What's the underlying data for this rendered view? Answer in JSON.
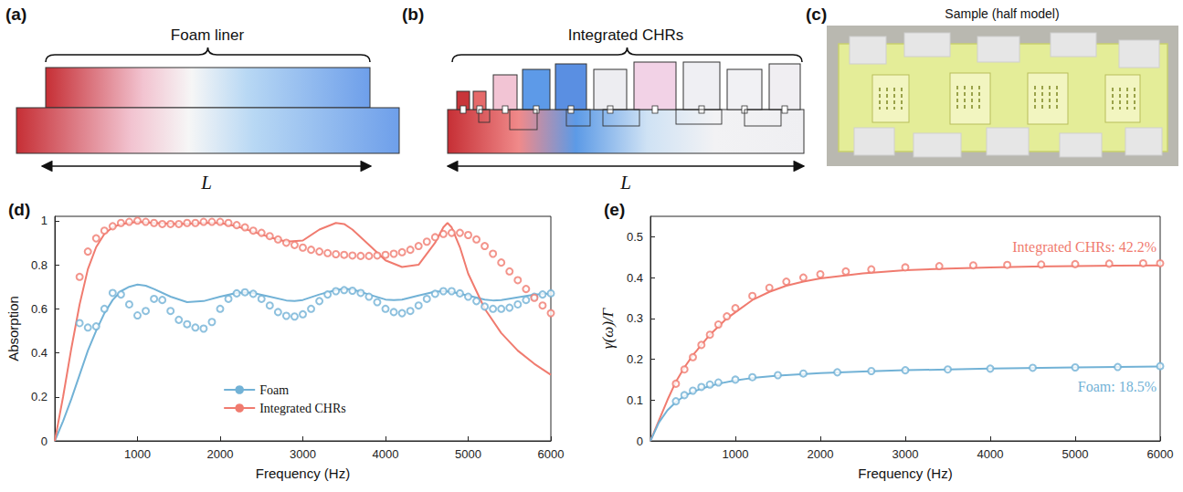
{
  "panels": {
    "a": {
      "label": "(a)",
      "title": "Foam liner",
      "dimension": "L"
    },
    "b": {
      "label": "(b)",
      "title": "Integrated CHRs",
      "dimension": "L"
    },
    "c": {
      "label": "(c)",
      "caption": "Sample (half model)"
    }
  },
  "chart_data": [
    {
      "type": "line",
      "title": "(d)",
      "x_label": "Frequency (Hz)",
      "y_label": "Absorption",
      "xlim": [
        0,
        6000
      ],
      "xticks": [
        1000,
        2000,
        3000,
        4000,
        5000,
        6000
      ],
      "ylim": [
        0,
        1.02
      ],
      "yticks": [
        0,
        0.2,
        0.4,
        0.6,
        0.8,
        1
      ],
      "grid": false,
      "legend": "bottom",
      "series": [
        {
          "name": "Foam",
          "type": "line",
          "line_style": "solid",
          "color": "#72b2d6",
          "x": [
            0,
            100,
            200,
            300,
            400,
            500,
            600,
            700,
            800,
            900,
            1000,
            1100,
            1200,
            1400,
            1600,
            1800,
            2000,
            2200,
            2300,
            2400,
            2600,
            2800,
            2900,
            3000,
            3200,
            3400,
            3500,
            3600,
            3800,
            4000,
            4100,
            4200,
            4400,
            4600,
            4700,
            4800,
            5000,
            5200,
            5300,
            5400,
            5600,
            5800,
            6000
          ],
          "values": [
            0,
            0.09,
            0.19,
            0.3,
            0.41,
            0.5,
            0.58,
            0.64,
            0.68,
            0.7,
            0.71,
            0.705,
            0.69,
            0.655,
            0.63,
            0.635,
            0.655,
            0.672,
            0.675,
            0.672,
            0.655,
            0.638,
            0.635,
            0.64,
            0.665,
            0.685,
            0.69,
            0.688,
            0.665,
            0.642,
            0.64,
            0.642,
            0.66,
            0.678,
            0.68,
            0.677,
            0.66,
            0.642,
            0.638,
            0.64,
            0.652,
            0.664,
            0.67
          ]
        },
        {
          "name": "Integrated CHRs",
          "type": "line",
          "line_style": "solid",
          "color": "#f07b6f",
          "x": [
            0,
            100,
            200,
            300,
            400,
            500,
            600,
            700,
            800,
            1000,
            1200,
            1500,
            1800,
            2000,
            2200,
            2400,
            2600,
            2800,
            3000,
            3200,
            3400,
            3500,
            3600,
            3800,
            4000,
            4200,
            4400,
            4600,
            4700,
            4750,
            4800,
            4900,
            5000,
            5200,
            5400,
            5600,
            5800,
            6000
          ],
          "values": [
            0,
            0.2,
            0.42,
            0.62,
            0.78,
            0.88,
            0.94,
            0.97,
            0.985,
            0.995,
            0.99,
            0.985,
            0.99,
            0.99,
            0.975,
            0.95,
            0.925,
            0.905,
            0.91,
            0.96,
            0.99,
            0.985,
            0.96,
            0.89,
            0.82,
            0.79,
            0.8,
            0.9,
            0.97,
            0.99,
            0.97,
            0.88,
            0.76,
            0.6,
            0.49,
            0.41,
            0.35,
            0.3
          ]
        },
        {
          "name": "Foam",
          "type": "scatter",
          "marker": "open_circle",
          "color": "#72b2d6",
          "x": [
            300,
            400,
            500,
            600,
            700,
            800,
            900,
            1000,
            1100,
            1200,
            1300,
            1400,
            1500,
            1600,
            1700,
            1800,
            1900,
            2000,
            2100,
            2200,
            2300,
            2400,
            2500,
            2600,
            2700,
            2800,
            2900,
            3000,
            3100,
            3200,
            3300,
            3400,
            3500,
            3600,
            3700,
            3800,
            3900,
            4000,
            4100,
            4200,
            4300,
            4400,
            4500,
            4600,
            4700,
            4800,
            4900,
            5000,
            5100,
            5200,
            5300,
            5400,
            5500,
            5600,
            5700,
            5800,
            5900,
            6000
          ],
          "values": [
            0.535,
            0.515,
            0.52,
            0.6,
            0.672,
            0.665,
            0.62,
            0.57,
            0.59,
            0.645,
            0.64,
            0.59,
            0.55,
            0.53,
            0.515,
            0.51,
            0.54,
            0.6,
            0.645,
            0.67,
            0.675,
            0.668,
            0.645,
            0.615,
            0.585,
            0.568,
            0.565,
            0.575,
            0.6,
            0.635,
            0.665,
            0.68,
            0.685,
            0.682,
            0.672,
            0.655,
            0.63,
            0.6,
            0.585,
            0.58,
            0.59,
            0.615,
            0.645,
            0.668,
            0.68,
            0.68,
            0.67,
            0.655,
            0.635,
            0.61,
            0.6,
            0.6,
            0.605,
            0.62,
            0.64,
            0.655,
            0.665,
            0.67
          ]
        },
        {
          "name": "Integrated CHRs",
          "type": "scatter",
          "marker": "open_circle",
          "color": "#f07b6f",
          "x": [
            300,
            400,
            500,
            600,
            700,
            800,
            900,
            1000,
            1100,
            1200,
            1300,
            1400,
            1500,
            1600,
            1700,
            1800,
            1900,
            2000,
            2100,
            2200,
            2300,
            2400,
            2500,
            2600,
            2700,
            2800,
            2900,
            3000,
            3100,
            3200,
            3300,
            3400,
            3500,
            3600,
            3700,
            3800,
            3900,
            4000,
            4100,
            4200,
            4300,
            4400,
            4500,
            4600,
            4700,
            4800,
            4900,
            5000,
            5100,
            5200,
            5300,
            5400,
            5500,
            5600,
            5700,
            5800,
            5900,
            6000
          ],
          "values": [
            0.745,
            0.86,
            0.92,
            0.955,
            0.975,
            0.99,
            0.995,
            1.0,
            0.995,
            0.99,
            0.985,
            0.985,
            0.985,
            0.99,
            0.99,
            0.995,
            0.995,
            0.995,
            0.99,
            0.98,
            0.97,
            0.955,
            0.945,
            0.93,
            0.915,
            0.9,
            0.89,
            0.878,
            0.868,
            0.86,
            0.853,
            0.848,
            0.845,
            0.842,
            0.84,
            0.84,
            0.842,
            0.845,
            0.85,
            0.857,
            0.868,
            0.885,
            0.905,
            0.925,
            0.94,
            0.945,
            0.945,
            0.935,
            0.915,
            0.885,
            0.85,
            0.81,
            0.77,
            0.73,
            0.69,
            0.65,
            0.615,
            0.58
          ]
        }
      ]
    },
    {
      "type": "line",
      "title": "(e)",
      "x_label": "Frequency (Hz)",
      "y_label": "γ(ω)/Γ",
      "xlim": [
        0,
        6000
      ],
      "xticks": [
        1000,
        2000,
        3000,
        4000,
        5000,
        6000
      ],
      "ylim": [
        0,
        0.55
      ],
      "yticks": [
        0,
        0.1,
        0.2,
        0.3,
        0.4,
        0.5
      ],
      "grid": false,
      "annotations": [
        {
          "text": "Integrated CHRs: 42.2%",
          "color": "#f07b6f"
        },
        {
          "text": "Foam: 18.5%",
          "color": "#72b2d6"
        }
      ],
      "series": [
        {
          "type": "line",
          "line_style": "solid",
          "color": "#f07b6f",
          "x": [
            0,
            100,
            200,
            300,
            400,
            500,
            600,
            700,
            800,
            900,
            1000,
            1200,
            1400,
            1600,
            1800,
            2000,
            2500,
            3000,
            3500,
            4000,
            4500,
            5000,
            5500,
            6000
          ],
          "values": [
            0,
            0.05,
            0.1,
            0.145,
            0.18,
            0.21,
            0.235,
            0.26,
            0.28,
            0.3,
            0.315,
            0.345,
            0.365,
            0.38,
            0.39,
            0.398,
            0.41,
            0.418,
            0.422,
            0.425,
            0.427,
            0.428,
            0.429,
            0.43
          ]
        },
        {
          "type": "line",
          "line_style": "solid",
          "color": "#72b2d6",
          "x": [
            0,
            100,
            200,
            300,
            400,
            500,
            600,
            800,
            1000,
            1200,
            1500,
            2000,
            2500,
            3000,
            4000,
            5000,
            6000
          ],
          "values": [
            0,
            0.045,
            0.075,
            0.095,
            0.11,
            0.12,
            0.128,
            0.14,
            0.148,
            0.154,
            0.16,
            0.166,
            0.17,
            0.173,
            0.177,
            0.18,
            0.182
          ]
        },
        {
          "type": "scatter",
          "marker": "open_circle",
          "color": "#f07b6f",
          "x": [
            300,
            400,
            500,
            600,
            700,
            800,
            900,
            1000,
            1200,
            1400,
            1600,
            1800,
            2000,
            2300,
            2600,
            3000,
            3400,
            3800,
            4200,
            4600,
            5000,
            5400,
            5800,
            6000
          ],
          "values": [
            0.14,
            0.175,
            0.205,
            0.235,
            0.26,
            0.285,
            0.305,
            0.325,
            0.355,
            0.375,
            0.39,
            0.4,
            0.408,
            0.415,
            0.42,
            0.425,
            0.428,
            0.43,
            0.431,
            0.432,
            0.433,
            0.434,
            0.435,
            0.435
          ]
        },
        {
          "type": "scatter",
          "marker": "open_circle",
          "color": "#72b2d6",
          "x": [
            300,
            400,
            500,
            600,
            700,
            800,
            1000,
            1200,
            1500,
            1800,
            2200,
            2600,
            3000,
            3500,
            4000,
            4500,
            5000,
            5500,
            6000
          ],
          "values": [
            0.097,
            0.112,
            0.123,
            0.132,
            0.138,
            0.143,
            0.15,
            0.156,
            0.161,
            0.165,
            0.168,
            0.171,
            0.173,
            0.175,
            0.177,
            0.179,
            0.18,
            0.181,
            0.183
          ]
        }
      ]
    }
  ]
}
